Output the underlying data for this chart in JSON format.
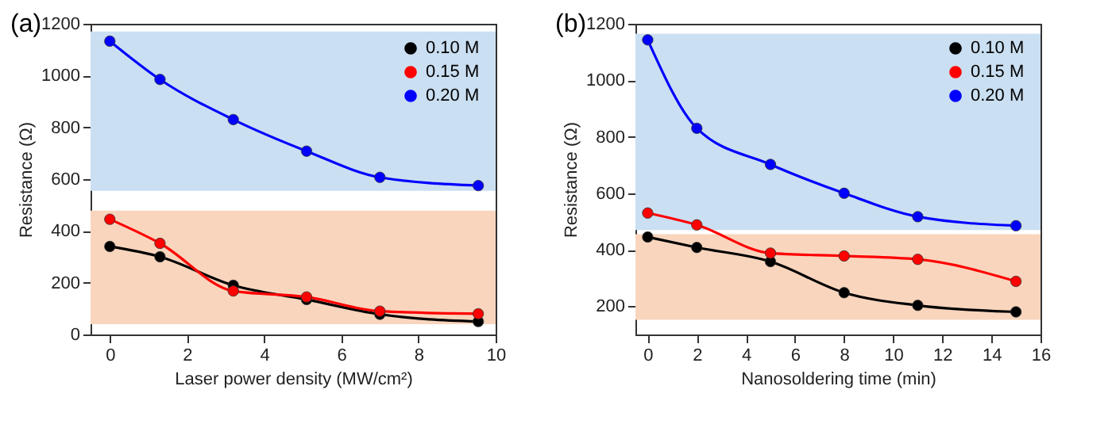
{
  "chart_data": [
    {
      "type": "line",
      "title": "(a)",
      "xlabel": "Laser power density (MW/cm²)",
      "ylabel": "Resistance (Ω)",
      "x": [
        0,
        1.3,
        3.2,
        5.1,
        7,
        9.55
      ],
      "series": [
        {
          "name": "0.10 M",
          "color": "#000000",
          "values": [
            340,
            300,
            190,
            135,
            78,
            50
          ]
        },
        {
          "name": "0.15 M",
          "color": "#ff0000",
          "values": [
            445,
            352,
            168,
            145,
            90,
            80
          ]
        },
        {
          "name": "0.20 M",
          "color": "#0000ff",
          "values": [
            1133,
            985,
            830,
            708,
            607,
            575
          ]
        }
      ],
      "bands": [
        {
          "axis": "y",
          "from": 555,
          "to": 1170,
          "color": "#cadff1"
        },
        {
          "axis": "y",
          "from": 40,
          "to": 478,
          "color": "#f9d5bd"
        }
      ],
      "xlim": [
        -0.5,
        10
      ],
      "xticks": [
        0,
        2,
        4,
        6,
        8,
        10
      ],
      "ylim": [
        0,
        1200
      ],
      "yticks": [
        0,
        200,
        400,
        600,
        800,
        1000,
        1200
      ],
      "legend": "top right",
      "marker": "circle",
      "grid": false
    },
    {
      "type": "line",
      "title": "(b)",
      "xlabel": "Nanosoldering time (min)",
      "ylabel": "Resistance (Ω)",
      "x": [
        0,
        2,
        5,
        8,
        11,
        15
      ],
      "series": [
        {
          "name": "0.10 M",
          "color": "#000000",
          "values": [
            445,
            408,
            358,
            248,
            203,
            180
          ]
        },
        {
          "name": "0.15 M",
          "color": "#ff0000",
          "values": [
            530,
            488,
            388,
            378,
            366,
            288
          ]
        },
        {
          "name": "0.20 M",
          "color": "#0000ff",
          "values": [
            1143,
            830,
            702,
            600,
            517,
            485
          ]
        }
      ],
      "bands": [
        {
          "axis": "y",
          "from": 470,
          "to": 1165,
          "color": "#cadff1"
        },
        {
          "axis": "y",
          "from": 152,
          "to": 455,
          "color": "#f9d5bd"
        }
      ],
      "xlim": [
        -0.5,
        16
      ],
      "xticks": [
        0,
        2,
        4,
        6,
        8,
        10,
        12,
        14,
        16
      ],
      "ylim": [
        100,
        1200
      ],
      "yticks": [
        200,
        400,
        600,
        800,
        1000,
        1200
      ],
      "legend": "top right",
      "marker": "circle",
      "grid": false
    }
  ]
}
